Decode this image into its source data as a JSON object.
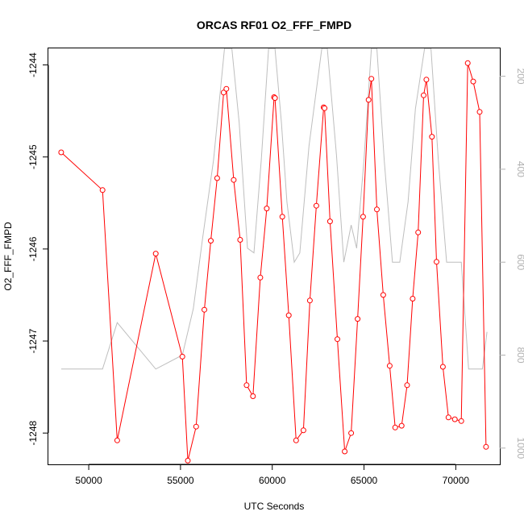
{
  "chart_data": {
    "type": "line",
    "title": "ORCAS RF01 O2_FFF_FMPD",
    "xlabel": "UTC Seconds",
    "ylabel": "O2_FFF_FMPD",
    "xlim": [
      47800,
      72400
    ],
    "ylim": [
      -1248.34,
      -1243.82
    ],
    "y2lim": [
      1035,
      140
    ],
    "x_ticks": [
      50000,
      55000,
      60000,
      65000,
      70000
    ],
    "x_tick_labels": [
      "50000",
      "55000",
      "60000",
      "65000",
      "70000"
    ],
    "y_ticks": [
      -1248,
      -1247,
      -1246,
      -1245,
      -1244
    ],
    "y_tick_labels": [
      "-1248",
      "-1247",
      "-1246",
      "-1245",
      "-1244"
    ],
    "y2_ticks": [
      200,
      400,
      600,
      800,
      1000
    ],
    "y2_tick_labels": [
      "200",
      "400",
      "600",
      "800",
      "1000"
    ],
    "colors": {
      "primary": "#ff0000",
      "secondary": "#bebebe"
    },
    "series": [
      {
        "axis": "left",
        "style": "line+points",
        "x": [
          48500,
          50750,
          51550,
          53650,
          55100,
          55400,
          55850,
          56300,
          56650,
          57000,
          57350,
          57500,
          57900,
          58250,
          58600,
          58950,
          59350,
          59700,
          60100,
          60150,
          60550,
          60900,
          61300,
          61700,
          62050,
          62400,
          62800,
          62850,
          63150,
          63550,
          63950,
          64300,
          64650,
          64950,
          65250,
          65400,
          65700,
          66050,
          66400,
          66700,
          67050,
          67350,
          67650,
          67950,
          68250,
          68400,
          68700,
          68950,
          69300,
          69600,
          69950,
          70300,
          70650,
          70950,
          71300,
          71650
        ],
        "y": [
          -1244.95,
          -1245.36,
          -1248.08,
          -1246.05,
          -1247.17,
          -1248.3,
          -1247.93,
          -1246.66,
          -1245.91,
          -1245.23,
          -1244.3,
          -1244.26,
          -1245.25,
          -1245.9,
          -1247.48,
          -1247.6,
          -1246.31,
          -1245.56,
          -1244.35,
          -1244.36,
          -1245.65,
          -1246.72,
          -1248.08,
          -1247.97,
          -1246.56,
          -1245.53,
          -1244.46,
          -1244.47,
          -1245.7,
          -1246.98,
          -1248.2,
          -1248.0,
          -1246.76,
          -1245.65,
          -1244.38,
          -1244.15,
          -1245.57,
          -1246.5,
          -1247.27,
          -1247.94,
          -1247.92,
          -1247.48,
          -1246.54,
          -1245.82,
          -1244.33,
          -1244.16,
          -1244.78,
          -1246.14,
          -1247.28,
          -1247.83,
          -1247.85,
          -1247.87,
          -1243.98,
          -1244.18,
          -1244.51,
          -1248.15
        ]
      },
      {
        "axis": "right",
        "style": "line",
        "x": [
          48500,
          50750,
          51550,
          53650,
          55100,
          55700,
          56200,
          56800,
          57400,
          57800,
          58200,
          58650,
          59000,
          59400,
          59800,
          60150,
          60500,
          60800,
          61200,
          61500,
          62000,
          62700,
          63000,
          63500,
          63900,
          64300,
          64600,
          65000,
          65400,
          65700,
          66100,
          66550,
          66950,
          67400,
          67800,
          68300,
          68650,
          69050,
          69500,
          69900,
          70300,
          70700,
          71100,
          71450,
          71700
        ],
        "y": [
          830,
          830,
          730,
          830,
          800,
          700,
          550,
          380,
          140,
          140,
          300,
          570,
          580,
          380,
          140,
          140,
          300,
          470,
          600,
          580,
          350,
          140,
          140,
          370,
          600,
          520,
          570,
          380,
          140,
          140,
          380,
          600,
          600,
          470,
          270,
          140,
          140,
          380,
          600,
          600,
          600,
          830,
          830,
          830,
          750
        ]
      }
    ]
  }
}
